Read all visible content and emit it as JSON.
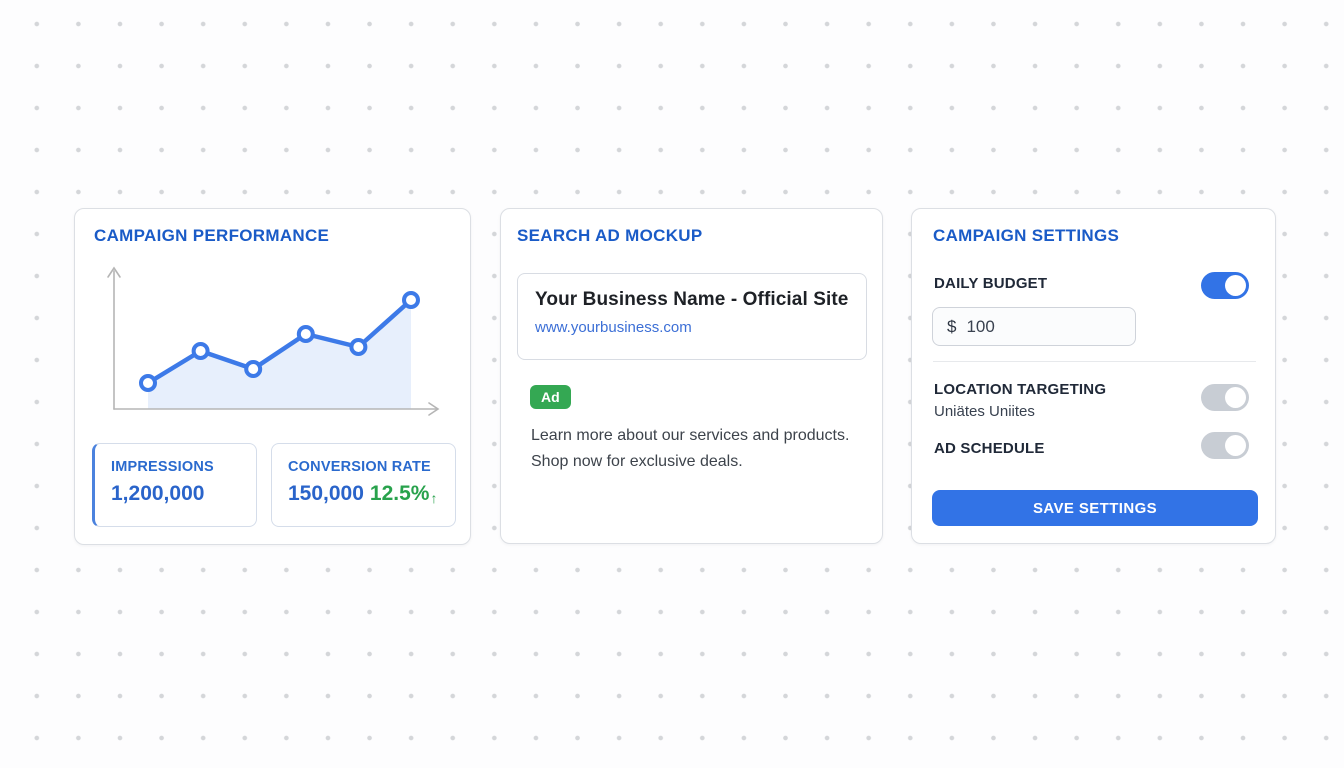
{
  "performance": {
    "title": "CAMPAIGN PERFORMANCE",
    "stats": [
      {
        "label": "IMPRESSIONS",
        "value": "1,200,000"
      },
      {
        "label": "CONVERSION RATE",
        "value": "150,000",
        "delta": "12.5%",
        "trend_arrow": "↑"
      }
    ]
  },
  "ad_mockup": {
    "title": "SEARCH AD MOCKUP",
    "headline": "Your Business Name - Official Site",
    "display_url": "www.yourbusiness.com",
    "ad_badge": "Ad",
    "description": "Learn more about our services and products. Shop now for exclusive deals."
  },
  "settings": {
    "title": "CAMPAIGN SETTINGS",
    "daily_budget": {
      "label": "DAILY BUDGET",
      "toggle": "on",
      "currency": "$",
      "value": "100"
    },
    "location": {
      "label": "LOCATION TARGETING",
      "value": "Uniätes Uniites",
      "toggle": "off"
    },
    "schedule": {
      "label": "AD SCHEDULE",
      "toggle": "off"
    },
    "save_label": "SAVE SETTINGS"
  },
  "chart_data": {
    "type": "line",
    "x": [
      1,
      2,
      3,
      4,
      5,
      6
    ],
    "series": [
      {
        "name": "campaign-performance",
        "values": [
          26,
          58,
          40,
          75,
          62,
          109
        ]
      }
    ],
    "title": "CAMPAIGN PERFORMANCE",
    "xlabel": "",
    "ylabel": "",
    "ylim": [
      0,
      130
    ],
    "grid": false,
    "legend": false,
    "markers": true,
    "area_fill": true,
    "axis_arrows": true,
    "line_color": "#3d7ae8",
    "fill_color": "rgba(61,122,232,0.12)",
    "axis_color": "#b5b5b5"
  },
  "colors": {
    "accent_blue": "#1a5bc7",
    "stat_blue": "#2a64ca",
    "green": "#28a24c",
    "badge_green": "#34a853",
    "button_blue": "#3273e6",
    "toggle_off_gray": "#c8cdd4"
  }
}
